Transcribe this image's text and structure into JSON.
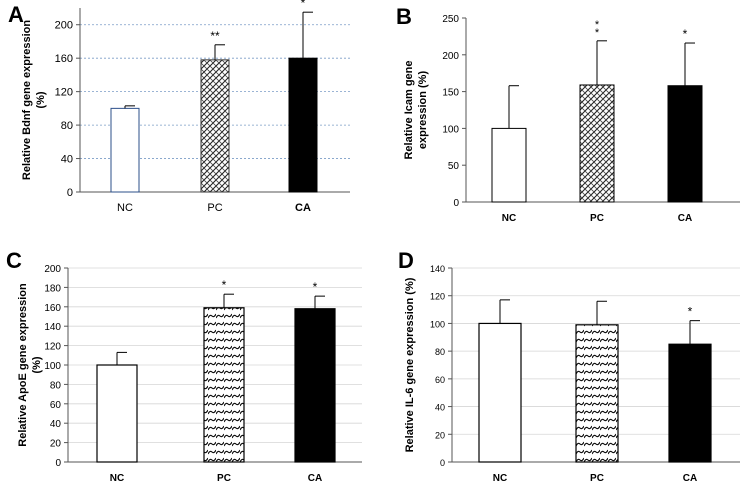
{
  "chart_data": [
    {
      "panel": "A",
      "type": "bar",
      "title": "",
      "xlabel": "",
      "ylabel_lines": [
        "Relative Bdnf gene expression",
        "(%)"
      ],
      "categories": [
        "NC",
        "PC",
        "CA"
      ],
      "values": [
        100,
        158,
        160
      ],
      "errors": [
        3,
        18,
        55
      ],
      "significance": [
        "",
        "**",
        "*"
      ],
      "ylim": [
        0,
        220
      ],
      "yticks": [
        0,
        40,
        80,
        120,
        160,
        200
      ],
      "grid": true
    },
    {
      "panel": "B",
      "type": "bar",
      "title": "",
      "xlabel": "",
      "ylabel_lines": [
        "Relative Icam gene",
        "expression (%)"
      ],
      "categories": [
        "NC",
        "PC",
        "CA"
      ],
      "values": [
        100,
        159,
        158
      ],
      "errors": [
        58,
        60,
        58
      ],
      "significance": [
        "",
        "**",
        "*"
      ],
      "ylim": [
        0,
        250
      ],
      "yticks": [
        0,
        50,
        100,
        150,
        200,
        250
      ],
      "grid": false
    },
    {
      "panel": "C",
      "type": "bar",
      "title": "",
      "xlabel": "",
      "ylabel_lines": [
        "Relative ApoE gene expression",
        "(%)"
      ],
      "categories": [
        "NC",
        "PC",
        "CA"
      ],
      "values": [
        100,
        159,
        158
      ],
      "errors": [
        13,
        14,
        13
      ],
      "significance": [
        "",
        "*",
        "*"
      ],
      "ylim": [
        0,
        200
      ],
      "yticks": [
        0,
        20,
        40,
        60,
        80,
        100,
        120,
        140,
        160,
        180,
        200
      ],
      "grid": true
    },
    {
      "panel": "D",
      "type": "bar",
      "title": "",
      "xlabel": "",
      "ylabel_lines": [
        "Relative IL-6 gene expression (%)"
      ],
      "categories": [
        "NC",
        "PC",
        "CA"
      ],
      "values": [
        100,
        99,
        85
      ],
      "errors": [
        17,
        17,
        17
      ],
      "significance": [
        "",
        "",
        "*"
      ],
      "ylim": [
        0,
        140
      ],
      "yticks": [
        0,
        20,
        40,
        60,
        80,
        100,
        120,
        140
      ],
      "grid": true
    }
  ],
  "bar_styles": [
    "white",
    "crosshatch",
    "black"
  ]
}
